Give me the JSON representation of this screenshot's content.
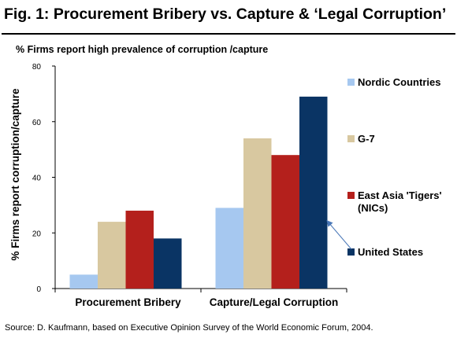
{
  "title": "Fig. 1: Procurement Bribery vs. Capture & ‘Legal Corruption’",
  "subtitle": "% Firms report  high prevalence of corruption /capture",
  "source": "Source: D. Kaufmann, based on Executive Opinion Survey of the World Economic Forum, 2004.",
  "chart_data": {
    "type": "bar",
    "categories": [
      "Procurement Bribery",
      "Capture/Legal Corruption"
    ],
    "ylabel": "% Firms report corruption/capture",
    "ylim": [
      0,
      80
    ],
    "yticks": [
      0,
      20,
      40,
      60,
      80
    ],
    "grid": false,
    "legend_position": "right",
    "series": [
      {
        "name": "Nordic Countries",
        "color": "#A6C8F0",
        "values": [
          5,
          29
        ]
      },
      {
        "name": "G-7",
        "color": "#D8C8A0",
        "values": [
          24,
          54
        ]
      },
      {
        "name": "East Asia 'Tigers' (NICs)",
        "color": "#B4201C",
        "values": [
          28,
          48
        ]
      },
      {
        "name": "United States",
        "color": "#0A3464",
        "values": [
          18,
          69
        ]
      }
    ]
  }
}
